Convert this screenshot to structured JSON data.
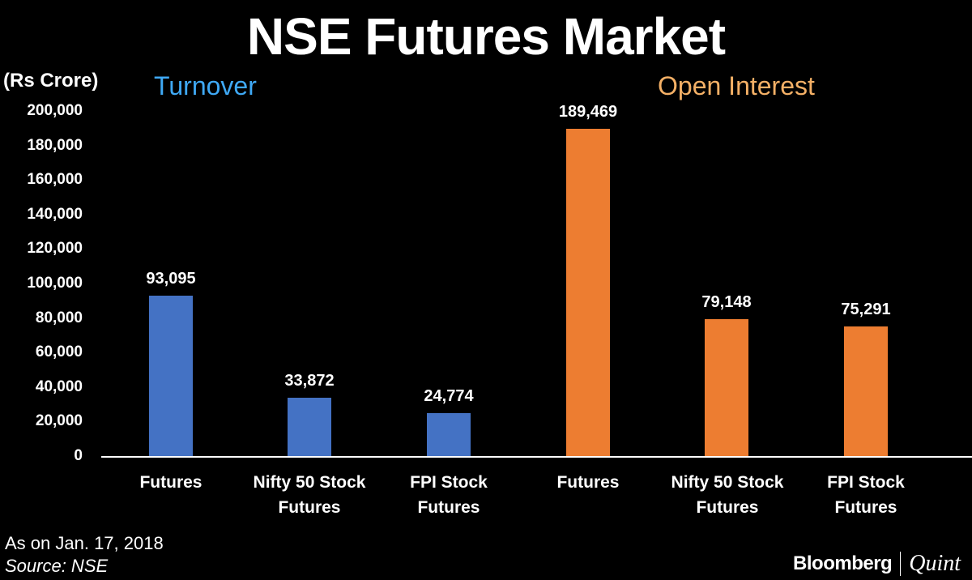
{
  "chart_data": {
    "type": "bar",
    "title": "NSE Futures Market",
    "ylabel": "(Rs Crore)",
    "xlabel": "",
    "ylim": [
      0,
      200000
    ],
    "yticks": [
      0,
      20000,
      40000,
      60000,
      80000,
      100000,
      120000,
      140000,
      160000,
      180000,
      200000
    ],
    "ytick_labels": [
      "0",
      "20,000",
      "40,000",
      "60,000",
      "80,000",
      "100,000",
      "120,000",
      "140,000",
      "160,000",
      "180,000",
      "200,000"
    ],
    "grid": false,
    "legend": "none (group headings used instead)",
    "groups": [
      {
        "name": "Turnover",
        "color": "#4472C4",
        "label_color": "#3FA9F5",
        "categories": [
          "Futures",
          "Nifty 50 Stock Futures",
          "FPI Stock Futures"
        ],
        "values": [
          93095,
          33872,
          24774
        ],
        "value_labels": [
          "93,095",
          "33,872",
          "24,774"
        ]
      },
      {
        "name": "Open Interest",
        "color": "#ED7D31",
        "label_color": "#F4B066",
        "categories": [
          "Futures",
          "Nifty 50 Stock Futures",
          "FPI Stock Futures"
        ],
        "values": [
          189469,
          79148,
          75291
        ],
        "value_labels": [
          "189,469",
          "79,148",
          "75,291"
        ]
      }
    ]
  },
  "header": {
    "title": "NSE Futures Market",
    "unit": "(Rs Crore)"
  },
  "groups": {
    "turnover": "Turnover",
    "open_interest": "Open Interest"
  },
  "x_labels": [
    "Futures",
    "Nifty 50 Stock\nFutures",
    "FPI Stock\nFutures",
    "Futures",
    "Nifty 50 Stock\nFutures",
    "FPI Stock\nFutures"
  ],
  "footer": {
    "as_of": "As on Jan. 17, 2018",
    "source": "Source: NSE",
    "brand_1": "Bloomberg",
    "brand_2": "Quint"
  }
}
